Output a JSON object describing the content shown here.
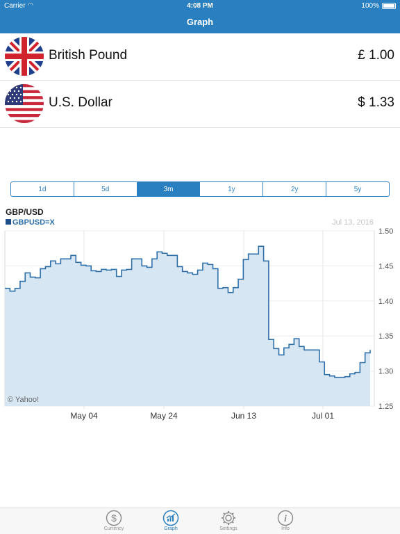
{
  "status": {
    "carrier": "Carrier",
    "time": "4:08 PM",
    "battery": "100%"
  },
  "nav": {
    "title": "Graph"
  },
  "currencies": [
    {
      "name": "British Pound",
      "amount": "£ 1.00",
      "flag": "uk-flag"
    },
    {
      "name": "U.S. Dollar",
      "amount": "$ 1.33",
      "flag": "us-flag"
    }
  ],
  "ranges": [
    "1d",
    "5d",
    "3m",
    "1y",
    "2y",
    "5y"
  ],
  "active_range": "3m",
  "chart_data": {
    "type": "area",
    "title": "GBP/USD",
    "legend": "GBPUSD=X",
    "date": "Jul 13, 2016",
    "watermark": "© Yahoo!",
    "x_ticks": [
      "May 04",
      "May 24",
      "Jun 13",
      "Jul 01"
    ],
    "y_ticks": [
      "1.50",
      "1.45",
      "1.40",
      "1.35",
      "1.30",
      "1.25"
    ],
    "ylim": [
      1.25,
      1.5
    ],
    "n_points": 73,
    "values": [
      1.418,
      1.414,
      1.418,
      1.428,
      1.44,
      1.434,
      1.433,
      1.446,
      1.449,
      1.457,
      1.453,
      1.46,
      1.46,
      1.465,
      1.455,
      1.451,
      1.45,
      1.443,
      1.442,
      1.445,
      1.444,
      1.445,
      1.435,
      1.444,
      1.445,
      1.46,
      1.46,
      1.45,
      1.448,
      1.46,
      1.47,
      1.468,
      1.465,
      1.465,
      1.449,
      1.442,
      1.44,
      1.438,
      1.444,
      1.454,
      1.452,
      1.446,
      1.418,
      1.419,
      1.412,
      1.419,
      1.431,
      1.459,
      1.467,
      1.467,
      1.478,
      1.457,
      1.345,
      1.332,
      1.323,
      1.333,
      1.338,
      1.346,
      1.335,
      1.33,
      1.33,
      1.33,
      1.313,
      1.295,
      1.293,
      1.291,
      1.291,
      1.292,
      1.296,
      1.298,
      1.312,
      1.326,
      1.33
    ],
    "grid": true,
    "color": "#2f6fa8",
    "fill": "#d6e6f3"
  },
  "tabs": [
    {
      "label": "Currency",
      "icon": "dollar-icon"
    },
    {
      "label": "Graph",
      "icon": "graph-icon"
    },
    {
      "label": "Settings",
      "icon": "gear-icon"
    },
    {
      "label": "Info",
      "icon": "info-icon"
    }
  ],
  "active_tab": "Graph"
}
